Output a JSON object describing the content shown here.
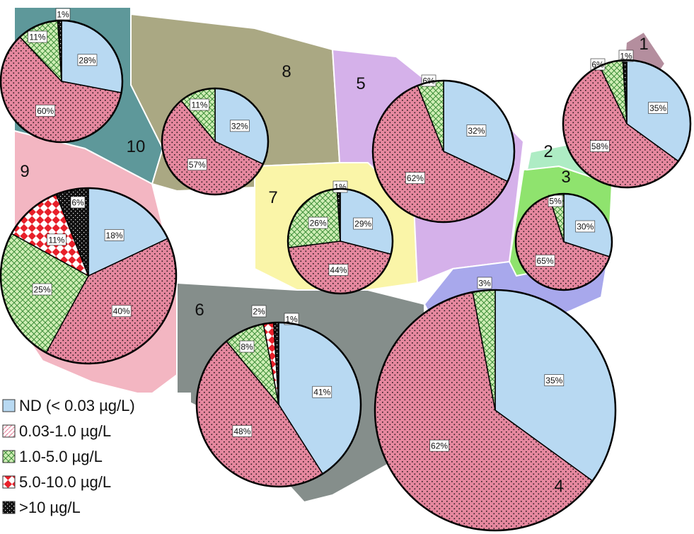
{
  "chart_data": {
    "type": "pie",
    "title": "",
    "categories": [
      "ND (< 0.03 µg/L)",
      "0.03-1.0 µg/L",
      "1.0-5.0 µg/L",
      "5.0-10.0 µg/L",
      ">10 µg/L"
    ],
    "category_colors": [
      "#b8d9f2",
      "#e6889f",
      "#cfeeb5",
      "#e8202a",
      "#111111"
    ],
    "category_patterns": [
      "plain",
      "dots",
      "crosshatch",
      "checker",
      "solid"
    ],
    "legend_placement": "bottom-left",
    "regions": [
      {
        "name": "1",
        "region_color": "#b48e9e",
        "values": [
          35,
          58,
          6,
          0,
          1
        ],
        "labels": [
          "35%",
          "58%",
          "6%",
          "",
          "1%"
        ]
      },
      {
        "name": "2",
        "region_color": "#aeecc4",
        "values": [],
        "labels": []
      },
      {
        "name": "3",
        "region_color": "#8fe36e",
        "values": [
          30,
          65,
          5,
          0,
          0
        ],
        "labels": [
          "30%",
          "65%",
          "5%",
          "",
          ""
        ]
      },
      {
        "name": "4",
        "region_color": "#a8a8ec",
        "values": [
          35,
          62,
          3,
          0,
          0
        ],
        "labels": [
          "35%",
          "62%",
          "3%",
          "",
          ""
        ]
      },
      {
        "name": "5",
        "region_color": "#d5b1ea",
        "values": [
          32,
          62,
          6,
          0,
          0
        ],
        "labels": [
          "32%",
          "62%",
          "6%",
          "",
          ""
        ]
      },
      {
        "name": "6",
        "region_color": "#858e8b",
        "values": [
          41,
          48,
          8,
          2,
          1
        ],
        "labels": [
          "41%",
          "48%",
          "8%",
          "2%",
          "1%"
        ]
      },
      {
        "name": "7",
        "region_color": "#faf5a8",
        "values": [
          29,
          44,
          26,
          0,
          1
        ],
        "labels": [
          "29%",
          "44%",
          "26%",
          "",
          "1%"
        ]
      },
      {
        "name": "8",
        "region_color": "#aaa883",
        "values": [
          32,
          57,
          11,
          0,
          0
        ],
        "labels": [
          "32%",
          "57%",
          "11%",
          "",
          ""
        ]
      },
      {
        "name": "9",
        "region_color": "#f3b6c2",
        "values": [
          18,
          40,
          25,
          11,
          6
        ],
        "labels": [
          "18%",
          "40%",
          "25%",
          "11%",
          "6%"
        ]
      },
      {
        "name": "10",
        "region_color": "#5e989a",
        "values": [
          28,
          60,
          11,
          0,
          1
        ],
        "labels": [
          "28%",
          "60%",
          "11%",
          "",
          "1%"
        ]
      }
    ]
  }
}
